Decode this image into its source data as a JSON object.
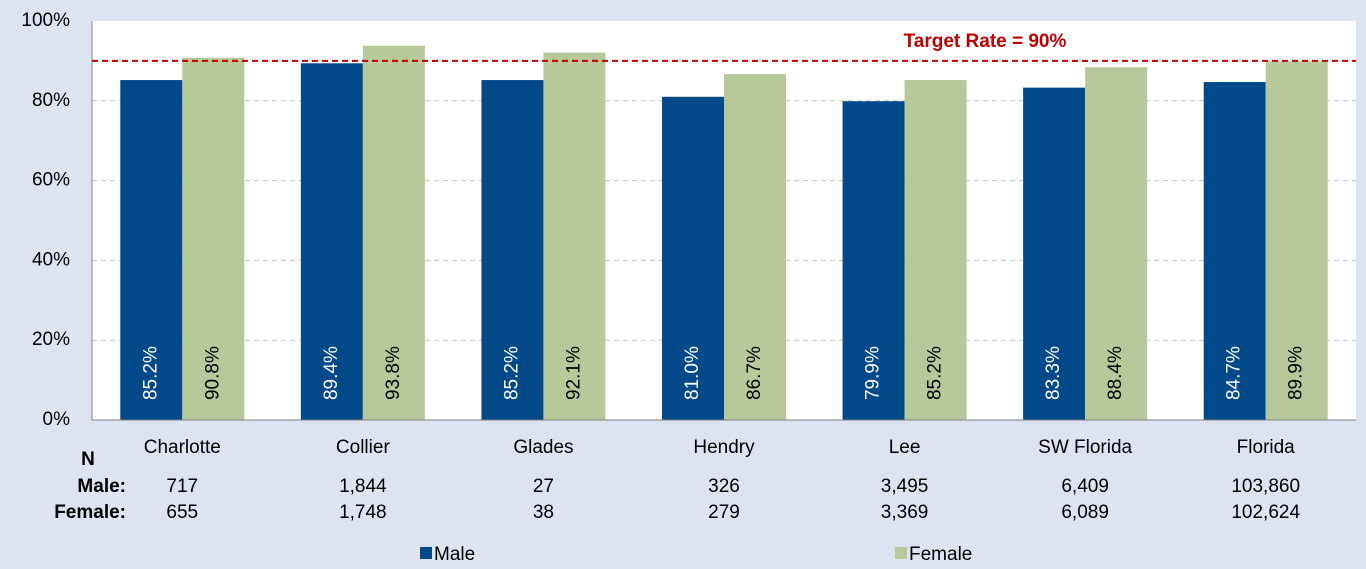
{
  "chart_data": {
    "type": "bar",
    "categories": [
      "Charlotte",
      "Collier",
      "Glades",
      "Hendry",
      "Lee",
      "SW Florida",
      "Florida"
    ],
    "series": [
      {
        "name": "Male",
        "color": "#02498a",
        "values": [
          85.2,
          89.4,
          85.2,
          81.0,
          79.9,
          83.3,
          84.7
        ],
        "value_labels": [
          "85.2%",
          "89.4%",
          "85.2%",
          "81.0%",
          "79.9%",
          "83.3%",
          "84.7%"
        ]
      },
      {
        "name": "Female",
        "color": "#b7c99b",
        "values": [
          90.8,
          93.8,
          92.1,
          86.7,
          85.2,
          88.4,
          89.9
        ],
        "value_labels": [
          "90.8%",
          "93.8%",
          "92.1%",
          "86.7%",
          "85.2%",
          "88.4%",
          "89.9%"
        ]
      }
    ],
    "ylim": [
      0,
      100
    ],
    "yticks": [
      {
        "value": 0,
        "label": "0%"
      },
      {
        "value": 20,
        "label": "20%"
      },
      {
        "value": 40,
        "label": "40%"
      },
      {
        "value": 60,
        "label": "60%"
      },
      {
        "value": 80,
        "label": "80%"
      },
      {
        "value": 100,
        "label": "100%"
      }
    ],
    "grid": true,
    "target": {
      "value": 90,
      "label": "Target Rate = 90%",
      "color": "#c00000"
    },
    "n_table": {
      "title": "N",
      "rows": [
        {
          "name": "Male:",
          "values": [
            "717",
            "1,844",
            "27",
            "326",
            "3,495",
            "6,409",
            "103,860"
          ]
        },
        {
          "name": "Female:",
          "values": [
            "655",
            "1,748",
            "38",
            "279",
            "3,369",
            "6,089",
            "102,624"
          ]
        }
      ]
    },
    "legend": "bottom"
  }
}
